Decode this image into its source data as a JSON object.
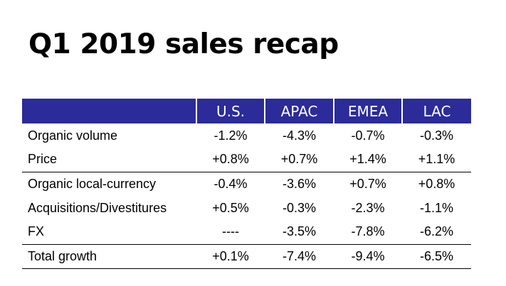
{
  "title": "Q1 2019 sales recap",
  "table": {
    "columns": [
      "",
      "U.S.",
      "APAC",
      "EMEA",
      "LAC"
    ],
    "rows": [
      {
        "label": "Organic volume",
        "values": [
          "-1.2%",
          "-4.3%",
          "-0.7%",
          "-0.3%"
        ]
      },
      {
        "label": "Price",
        "values": [
          "+0.8%",
          "+0.7%",
          "+1.4%",
          "+1.1%"
        ]
      },
      {
        "label": "Organic local-currency",
        "values": [
          "-0.4%",
          "-3.6%",
          "+0.7%",
          "+0.8%"
        ]
      },
      {
        "label": "Acquisitions/Divestitures",
        "values": [
          "+0.5%",
          "-0.3%",
          "-2.3%",
          "-1.1%"
        ]
      },
      {
        "label": "FX",
        "values": [
          "----",
          "-3.5%",
          "-7.8%",
          "-6.2%"
        ]
      },
      {
        "label": "Total growth",
        "values": [
          "+0.1%",
          "-7.4%",
          "-9.4%",
          "-6.5%"
        ]
      }
    ]
  },
  "colors": {
    "header_background": "#2b2b9a",
    "header_text": "#ffffff",
    "body_text": "#000000",
    "rule": "#000000"
  }
}
